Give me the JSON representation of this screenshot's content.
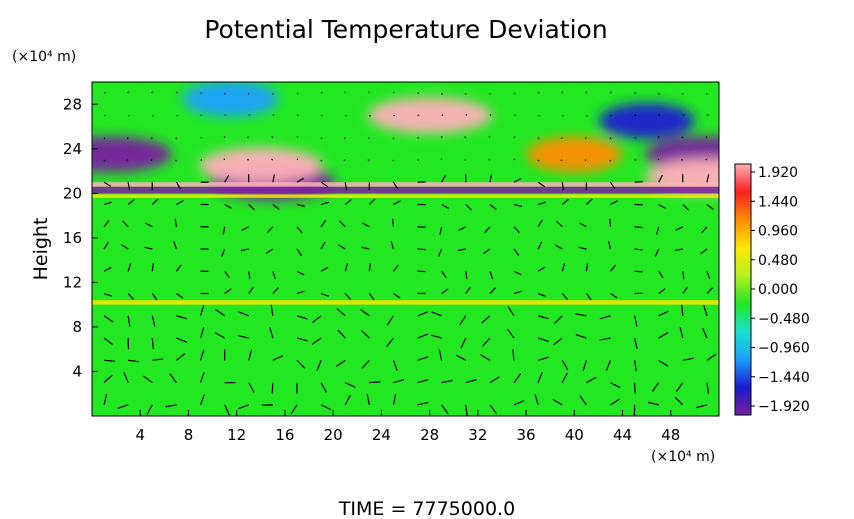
{
  "chart_data": {
    "type": "heatmap",
    "title": "Potential Temperature Deviation",
    "ylabel": "Height",
    "y_unit_label": "(×10⁴ m)",
    "x_unit_label": "(×10⁴ m)",
    "x_ticks": [
      4,
      8,
      12,
      16,
      20,
      24,
      28,
      32,
      36,
      40,
      44,
      48
    ],
    "y_ticks": [
      4,
      8,
      12,
      16,
      20,
      24,
      28
    ],
    "xlim": [
      0,
      52
    ],
    "ylim": [
      0,
      30
    ],
    "colorbar": {
      "range": [
        -1.92,
        1.92
      ],
      "tick_labels": [
        "1.920",
        "1.440",
        "0.960",
        "0.480",
        "0.000",
        "−0.480",
        "−0.960",
        "−1.440",
        "−1.920"
      ],
      "colors": [
        "#7a1fa0",
        "#1a1ad0",
        "#1aa0ff",
        "#18e0d0",
        "#22e822",
        "#b8f020",
        "#ffe800",
        "#ff8c00",
        "#ff2020",
        "#ffb0b8"
      ]
    },
    "overlay": "wind vectors",
    "features": [
      {
        "kind": "cold-anomaly",
        "x": 1.5,
        "y": 23.5,
        "value": -1.9
      },
      {
        "kind": "cold-anomaly",
        "x": 11.5,
        "y": 28.5,
        "value": -1.2
      },
      {
        "kind": "cold-anomaly",
        "x": 46,
        "y": 26.5,
        "value": -1.5
      },
      {
        "kind": "cold-anomaly",
        "x": 51,
        "y": 23.5,
        "value": -1.9
      },
      {
        "kind": "cold-anomaly",
        "x": 15,
        "y": 21,
        "value": -1.9
      },
      {
        "kind": "warm-anomaly",
        "x": 28,
        "y": 27,
        "value": 1.92
      },
      {
        "kind": "warm-anomaly",
        "x": 14,
        "y": 22.5,
        "value": 1.92
      },
      {
        "kind": "warm-anomaly",
        "x": 40,
        "y": 23.5,
        "value": 1.0
      },
      {
        "kind": "warm-anomaly",
        "x": 51,
        "y": 21.5,
        "value": 1.92
      }
    ],
    "footer": "TIME = 7775000.0"
  }
}
